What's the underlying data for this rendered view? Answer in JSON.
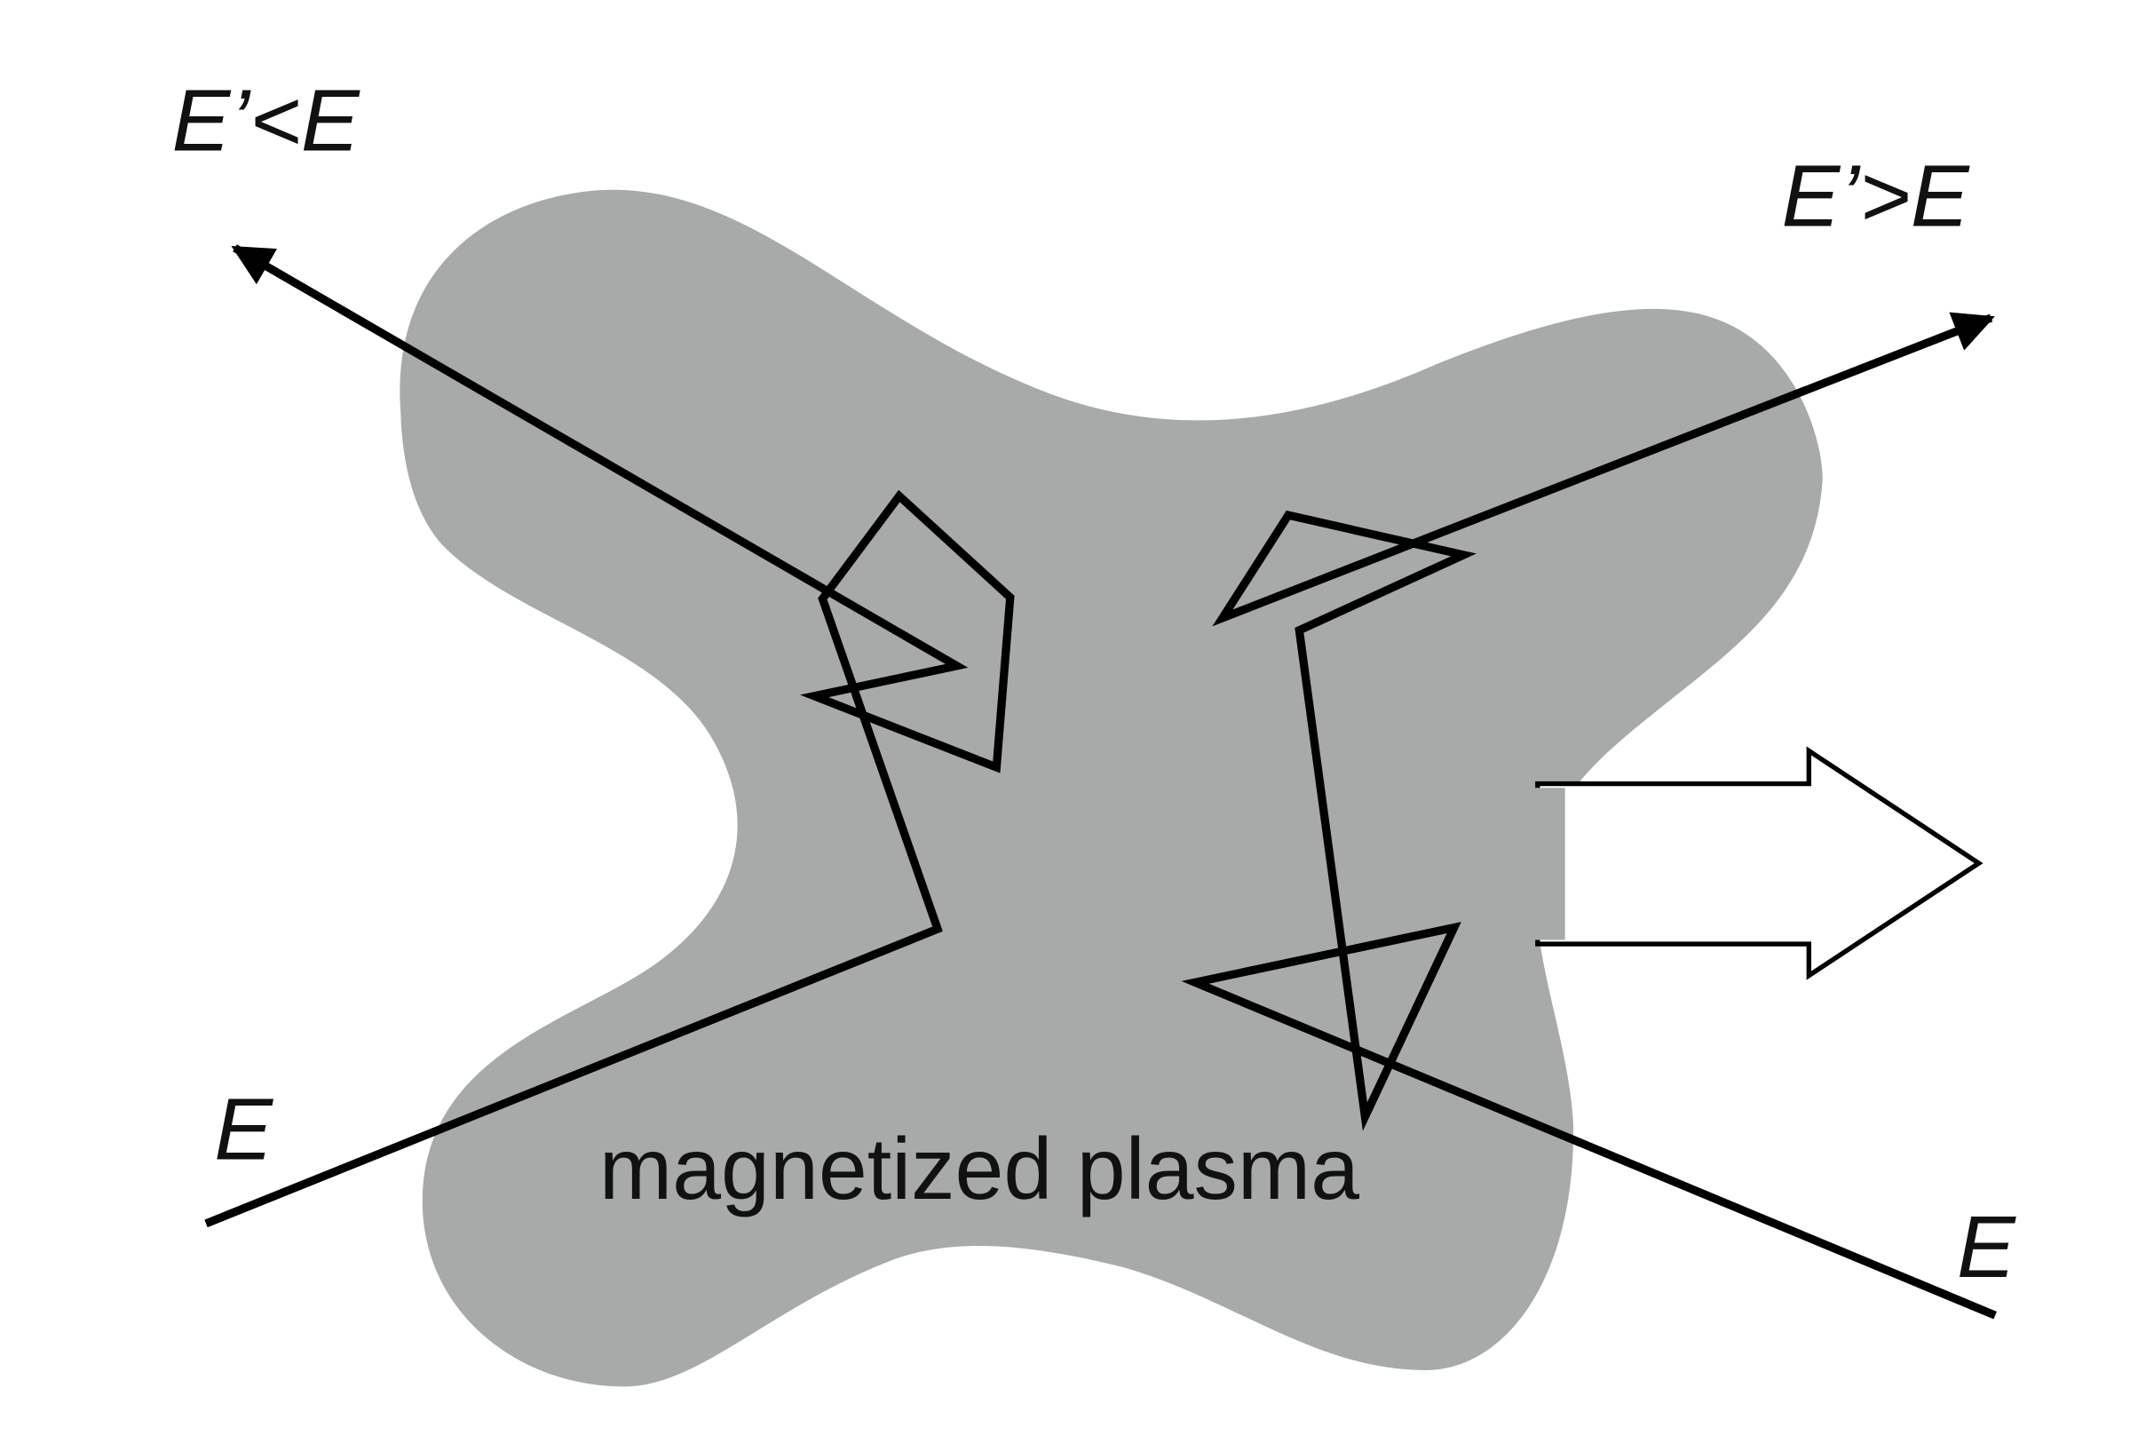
{
  "diagram": {
    "labels": {
      "incoming_left": "E",
      "outgoing_left": "E’<E",
      "outgoing_right": "E’>E",
      "incoming_right": "E",
      "medium": "magnetized plasma"
    },
    "colors": {
      "plasma_fill": "#a7aaa8",
      "line": "#000000",
      "background": "#ffffff"
    }
  }
}
